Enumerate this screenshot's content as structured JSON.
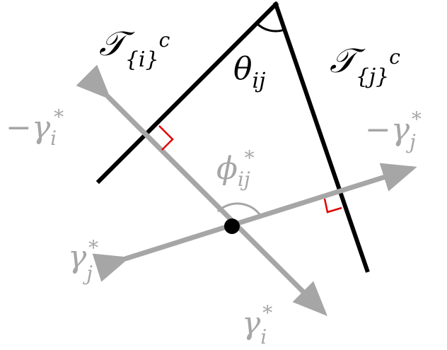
{
  "colors": {
    "line": "#000000",
    "arrow": "#a6a6a6",
    "right_angle_marker": "#e00000",
    "point": "#000000"
  },
  "labels": {
    "T_i": {
      "base": "𝒯",
      "sub": "{i}",
      "sup": "c"
    },
    "T_j": {
      "base": "𝒯",
      "sub": "{j}",
      "sup": "c"
    },
    "theta": {
      "base": "θ",
      "sub": "ij"
    },
    "phi": {
      "base": "ϕ",
      "sub": "ij",
      "sup": "*"
    },
    "neg_gamma_i": {
      "base": "−γ",
      "sub": "i",
      "sup": "*"
    },
    "neg_gamma_j": {
      "base": "−γ",
      "sub": "j",
      "sup": "*"
    },
    "gamma_j": {
      "base": "γ",
      "sub": "j",
      "sup": "*"
    },
    "gamma_i": {
      "base": "γ",
      "sub": "i",
      "sup": "*"
    }
  }
}
